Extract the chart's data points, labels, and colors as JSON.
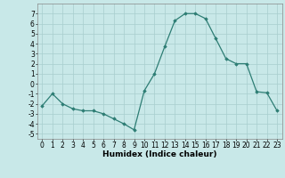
{
  "x": [
    0,
    1,
    2,
    3,
    4,
    5,
    6,
    7,
    8,
    9,
    10,
    11,
    12,
    13,
    14,
    15,
    16,
    17,
    18,
    19,
    20,
    21,
    22,
    23
  ],
  "y": [
    -2.2,
    -1.0,
    -2.0,
    -2.5,
    -2.7,
    -2.7,
    -3.0,
    -3.5,
    -4.0,
    -4.6,
    -0.7,
    1.0,
    3.7,
    6.3,
    7.0,
    7.0,
    6.5,
    4.5,
    2.5,
    2.0,
    2.0,
    -0.8,
    -0.9,
    -2.7
  ],
  "line_color": "#2d7d74",
  "marker": "D",
  "marker_size": 1.8,
  "bg_color": "#c8e8e8",
  "grid_color": "#a8cece",
  "xlabel": "Humidex (Indice chaleur)",
  "xlabel_fontsize": 6.5,
  "tick_fontsize": 5.5,
  "ylim": [
    -5.5,
    8.0
  ],
  "xlim": [
    -0.5,
    23.5
  ],
  "yticks": [
    -5,
    -4,
    -3,
    -2,
    -1,
    0,
    1,
    2,
    3,
    4,
    5,
    6,
    7
  ],
  "xticks": [
    0,
    1,
    2,
    3,
    4,
    5,
    6,
    7,
    8,
    9,
    10,
    11,
    12,
    13,
    14,
    15,
    16,
    17,
    18,
    19,
    20,
    21,
    22,
    23
  ]
}
